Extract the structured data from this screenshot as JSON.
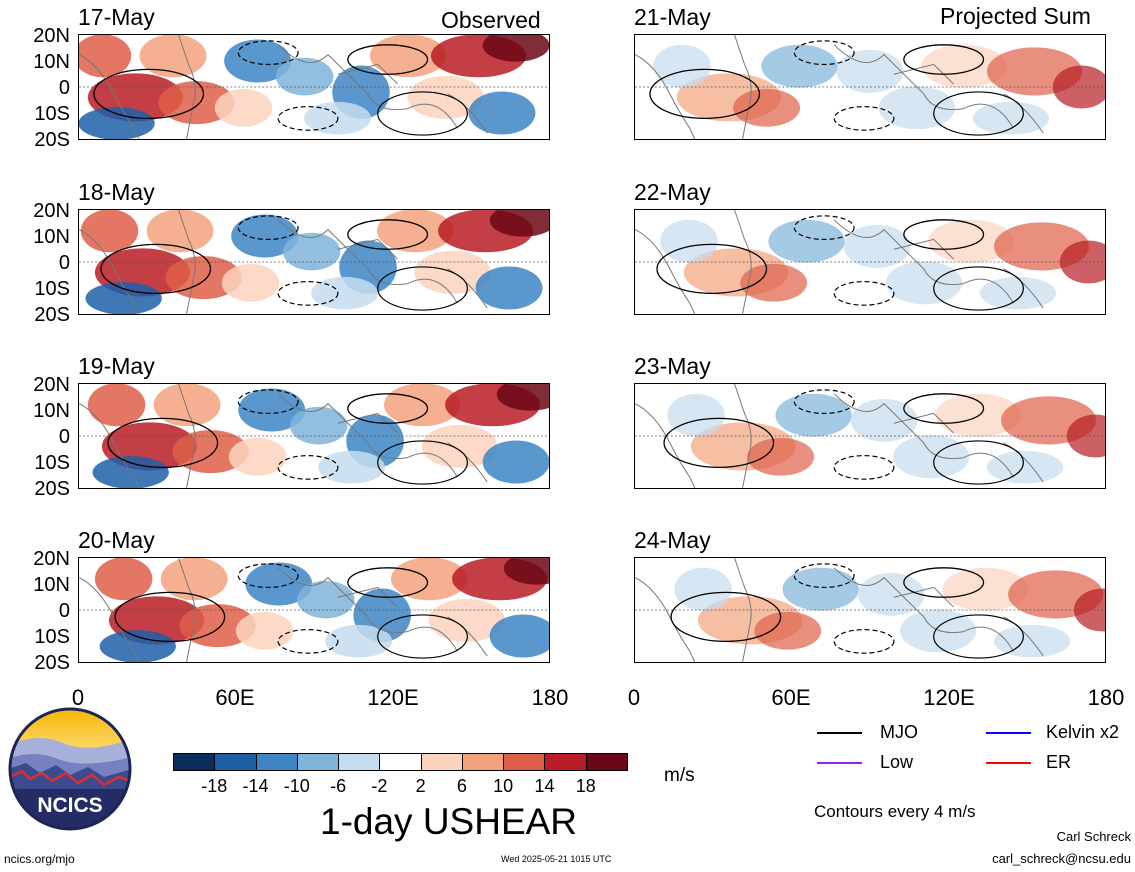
{
  "headers": {
    "observed": "Observed",
    "projected": "Projected Sum"
  },
  "panels": [
    {
      "date": "17-May",
      "column": "observed"
    },
    {
      "date": "18-May",
      "column": "observed"
    },
    {
      "date": "19-May",
      "column": "observed"
    },
    {
      "date": "20-May",
      "column": "observed"
    },
    {
      "date": "21-May",
      "column": "projected"
    },
    {
      "date": "22-May",
      "column": "projected"
    },
    {
      "date": "23-May",
      "column": "projected"
    },
    {
      "date": "24-May",
      "column": "projected"
    }
  ],
  "lat_labels": [
    "20N",
    "10N",
    "0",
    "10S",
    "20S"
  ],
  "lon_labels": [
    "0",
    "60E",
    "120E",
    "180"
  ],
  "colorbar": {
    "ticks": [
      "-18",
      "-14",
      "-10",
      "-6",
      "-2",
      "2",
      "6",
      "10",
      "14",
      "18"
    ],
    "colors": [
      "#0a2d5e",
      "#1f5fa8",
      "#3d85c4",
      "#7fb4da",
      "#c4dcee",
      "#ffffff",
      "#fbd3bd",
      "#f2a27c",
      "#de5f48",
      "#b81c24",
      "#6b0716"
    ],
    "unit": "m/s",
    "title": "1-day USHEAR"
  },
  "legend": {
    "items": [
      {
        "label": "MJO",
        "color": "#000000"
      },
      {
        "label": "Kelvin x2",
        "color": "#0000ff"
      },
      {
        "label": "Low",
        "color": "#a020f0"
      },
      {
        "label": "ER",
        "color": "#ff0000"
      }
    ],
    "note": "Contours every 4 m/s"
  },
  "logo": {
    "text": "NCICS"
  },
  "footer": {
    "left": "ncics.org/mjo",
    "center": "Wed 2025-05-21 1015 UTC",
    "author": "Carl Schreck",
    "email": "carl_schreck@ncsu.edu"
  }
}
